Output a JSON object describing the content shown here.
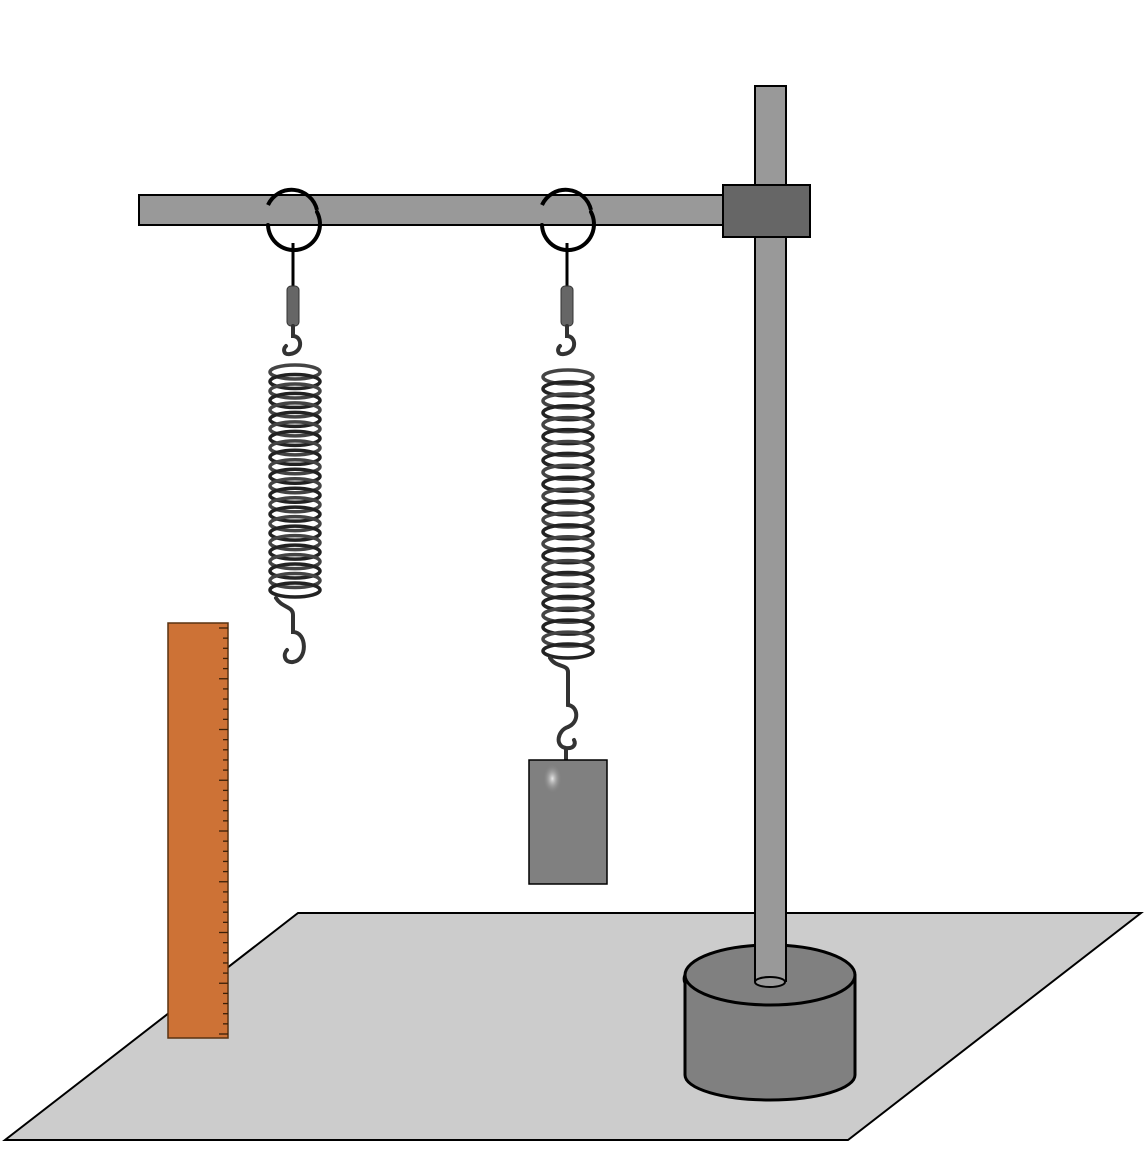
{
  "scene": {
    "table_color": "#cccccc",
    "stand_color": "#999999",
    "base_color": "#808080",
    "clamp_color": "#666666",
    "spring_color": "#444444",
    "ruler_color": "#cd7236",
    "mass_color": "#808080"
  },
  "ruler": {
    "minor_tick_count": 41
  },
  "springs": [
    {
      "name": "unloaded-spring",
      "coils": 24,
      "loaded": false
    },
    {
      "name": "loaded-spring",
      "coils": 24,
      "loaded": true
    }
  ]
}
